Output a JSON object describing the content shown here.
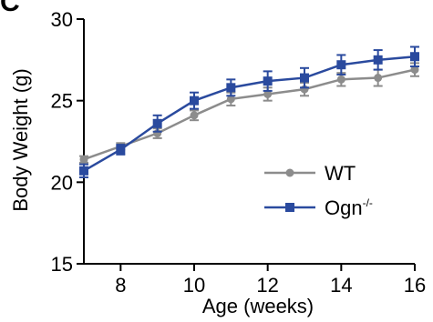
{
  "panel_label": "C",
  "chart_data": {
    "type": "line",
    "xlabel": "Age (weeks)",
    "ylabel": "Body Weight (g)",
    "xlim": [
      7,
      16
    ],
    "ylim": [
      15,
      30
    ],
    "xticks": [
      8,
      10,
      12,
      14,
      16
    ],
    "yticks": [
      15,
      20,
      25,
      30
    ],
    "grid": false,
    "legend_position": "center-right",
    "x": [
      7,
      8,
      9,
      10,
      11,
      12,
      13,
      14,
      15,
      16
    ],
    "series": [
      {
        "name": "WT",
        "color": "#8c8c8c",
        "marker": "circle",
        "values": [
          21.4,
          22.2,
          23.0,
          24.1,
          25.1,
          25.4,
          25.7,
          26.3,
          26.4,
          26.9
        ],
        "errors": [
          0.2,
          0.2,
          0.3,
          0.3,
          0.4,
          0.4,
          0.4,
          0.4,
          0.5,
          0.4
        ]
      },
      {
        "name": "Ogn",
        "superscript": "-/-",
        "color": "#2a4a9e",
        "marker": "square",
        "values": [
          20.7,
          22.0,
          23.6,
          25.0,
          25.8,
          26.2,
          26.4,
          27.2,
          27.5,
          27.7
        ],
        "errors": [
          0.4,
          0.3,
          0.5,
          0.5,
          0.5,
          0.6,
          0.6,
          0.6,
          0.6,
          0.6
        ]
      }
    ]
  }
}
